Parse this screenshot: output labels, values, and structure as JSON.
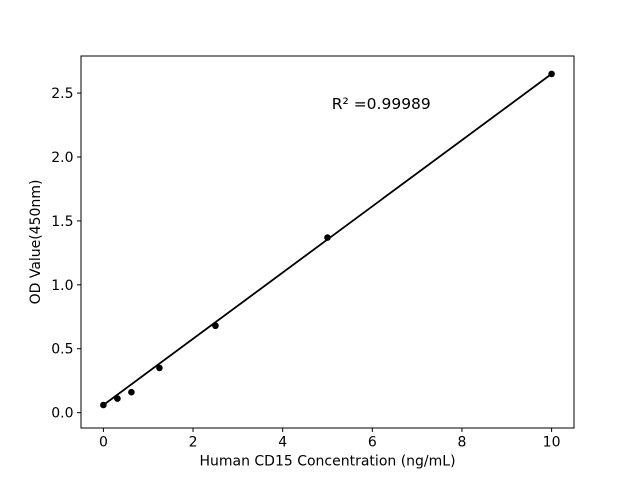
{
  "figure": {
    "background": "#ffffff",
    "text_color": "#000000"
  },
  "chart_data": {
    "type": "scatter",
    "title": "",
    "xlabel": "Human CD15 Concentration (ng/mL)",
    "ylabel": "OD Value(450nm)",
    "x": [
      0,
      0.3125,
      0.625,
      1.25,
      2.5,
      5,
      10
    ],
    "y": [
      0.06,
      0.11,
      0.16,
      0.35,
      0.68,
      1.37,
      2.65
    ],
    "fit_line": {
      "x1": 0,
      "y1": 0.06,
      "x2": 10,
      "y2": 2.65
    },
    "annotation": {
      "text": "R² =0.99989",
      "x": 6.2,
      "y": 2.42
    },
    "xticks": [
      0,
      2,
      4,
      6,
      8,
      10
    ],
    "ytick_labels": [
      "0.0",
      "0.5",
      "1.0",
      "1.5",
      "2.0",
      "2.5"
    ],
    "xlim": [
      -0.5,
      10.5
    ],
    "ylim": [
      -0.12,
      2.79
    ],
    "grid": false,
    "legend": false,
    "line_color": "#000000",
    "marker_color": "#000000",
    "axis_color": "#000000"
  }
}
